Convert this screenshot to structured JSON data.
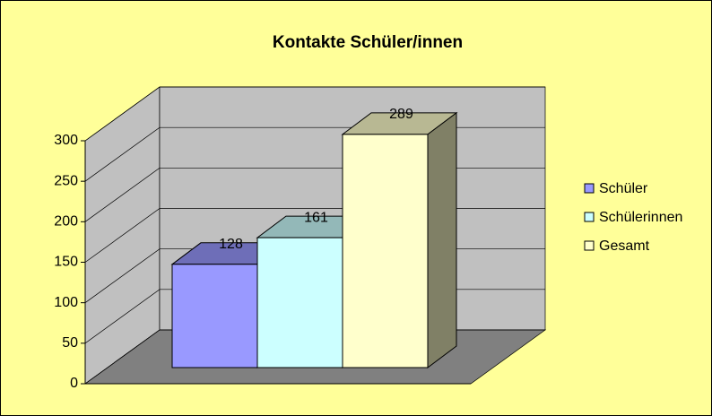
{
  "chart_data": {
    "type": "bar3d",
    "title": "Kontakte Schüler/innen",
    "categories": [
      null
    ],
    "series": [
      {
        "name": "Schüler",
        "color": "#9999FF",
        "values": [
          128
        ]
      },
      {
        "name": "Schülerinnen",
        "color": "#CCFFFF",
        "values": [
          161
        ]
      },
      {
        "name": "Gesamt",
        "color": "#FFFFCC",
        "values": [
          289
        ]
      }
    ],
    "ylim": [
      0,
      300
    ],
    "yticks": [
      0,
      50,
      100,
      150,
      200,
      250,
      300
    ],
    "grid": true,
    "legend": "right"
  }
}
